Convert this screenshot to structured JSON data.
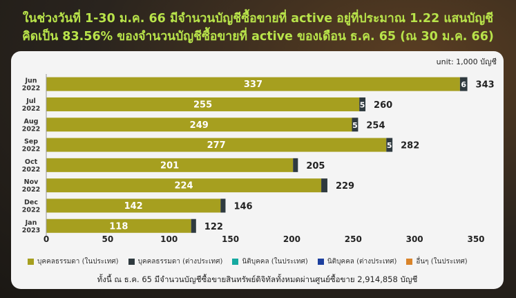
{
  "title": {
    "line1": "ในช่วงวันที่ 1-30 ม.ค. 66 มีจำนวนบัญชีซื้อขายที่ active อยู่ที่ประมาณ 1.22 แสนบัญชี",
    "line2": "คิดเป็น 83.56% ของจำนวนบัญชีซื้อขายที่ active ของเดือน ธ.ค. 65 (ณ 30 ม.ค. 66)"
  },
  "unit_label": "unit: 1,000 บัญชี",
  "footnote": "ทั้งนี้ ณ ธ.ค. 65 มีจำนวนบัญชีซื้อขายสินทรัพย์ดิจิทัลทั้งหมดผ่านศูนย์ซื้อขาย 2,914,858 บัญชี",
  "colors": {
    "individual_thai": "#a69f1f",
    "individual_foreign": "#2f3a3f",
    "juristic_thai": "#16a9a0",
    "juristic_foreign": "#1c3f9e",
    "other_thai": "#d9842a"
  },
  "legend": [
    {
      "label": "บุคคลธรรมดา (ในประเทศ)",
      "color": "#a69f1f"
    },
    {
      "label": "บุคคลธรรมดา (ต่างประเทศ)",
      "color": "#2f3a3f"
    },
    {
      "label": "นิติบุคคล (ในประเทศ)",
      "color": "#16a9a0"
    },
    {
      "label": "นิติบุคคล (ต่างประเทศ)",
      "color": "#1c3f9e"
    },
    {
      "label": "อื่นๆ (ในประเทศ)",
      "color": "#d9842a"
    }
  ],
  "chart_data": {
    "type": "bar",
    "orientation": "horizontal",
    "stacked": true,
    "categories": [
      "Jun 2022",
      "Jul 2022",
      "Aug 2022",
      "Sep 2022",
      "Oct 2022",
      "Nov 2022",
      "Dec 2022",
      "Jan 2023"
    ],
    "series": [
      {
        "name": "บุคคลธรรมดา (ในประเทศ)",
        "values": [
          337,
          255,
          249,
          277,
          201,
          224,
          142,
          118
        ]
      },
      {
        "name": "บุคคลธรรมดา (ต่างประเทศ)",
        "values": [
          6,
          5,
          5,
          5,
          4,
          5,
          4,
          4
        ]
      }
    ],
    "inner_labels_domestic": [
      "337",
      "255",
      "249",
      "277",
      "201",
      "224",
      "142",
      "118"
    ],
    "inner_labels_foreign": [
      "6",
      "5",
      "5",
      "5",
      "",
      "",
      "",
      ""
    ],
    "totals": [
      343,
      260,
      254,
      282,
      205,
      229,
      146,
      122
    ],
    "total_labels": [
      "343",
      "260",
      "254",
      "282",
      "205",
      "229",
      "146",
      "122"
    ],
    "xlim": [
      0,
      350
    ],
    "xticks": [
      0,
      50,
      100,
      150,
      200,
      250,
      300,
      350
    ],
    "grid": false,
    "legend_position": "bottom"
  }
}
